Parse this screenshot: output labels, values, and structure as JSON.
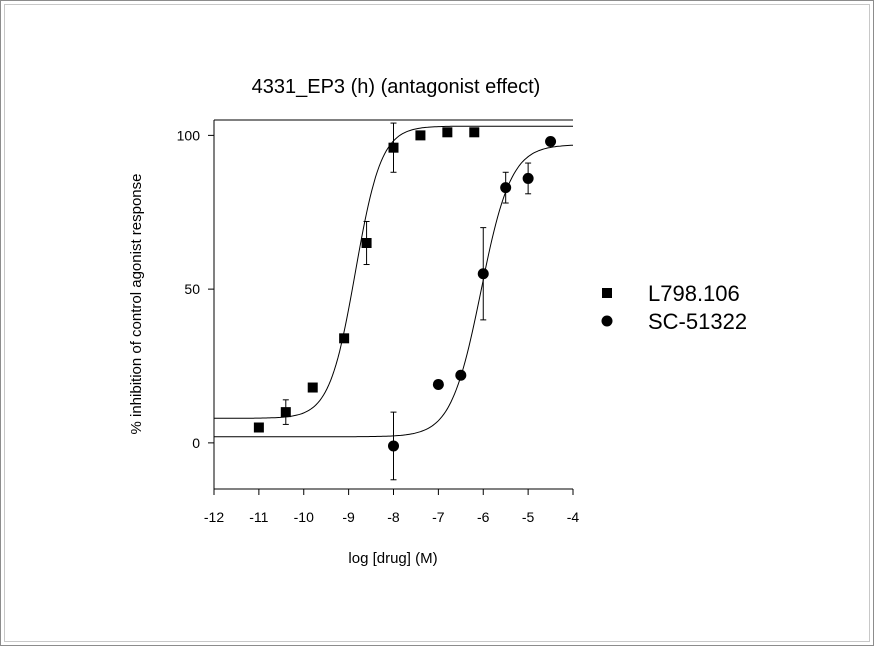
{
  "chart_data": {
    "type": "scatter",
    "title": "4331_EP3 (h) (antagonist effect)",
    "xlabel": "log [drug]  (M)",
    "ylabel": "% inhibition of control agonist response",
    "xlim": [
      -12,
      -4
    ],
    "ylim": [
      -15,
      105
    ],
    "x_ticks": [
      -12,
      -11,
      -10,
      -9,
      -8,
      -7,
      -6,
      -5,
      -4
    ],
    "y_ticks": [
      0,
      50,
      100
    ],
    "legend_position": "right",
    "series": [
      {
        "name": "L798.106",
        "marker": "square",
        "color": "#000000",
        "points": [
          {
            "x": -11.0,
            "y": 5,
            "err": 0
          },
          {
            "x": -10.4,
            "y": 10,
            "err": 4
          },
          {
            "x": -9.8,
            "y": 18,
            "err": 0
          },
          {
            "x": -9.1,
            "y": 34,
            "err": 0
          },
          {
            "x": -8.6,
            "y": 65,
            "err": 7
          },
          {
            "x": -8.0,
            "y": 96,
            "err": 8
          },
          {
            "x": -7.4,
            "y": 100,
            "err": 0
          },
          {
            "x": -6.8,
            "y": 101,
            "err": 0
          },
          {
            "x": -6.2,
            "y": 101,
            "err": 0
          }
        ],
        "fit": {
          "bottom": 8,
          "top": 103,
          "logEC50": -8.85,
          "hill": 1.5
        }
      },
      {
        "name": "SC-51322",
        "marker": "circle",
        "color": "#000000",
        "points": [
          {
            "x": -8.0,
            "y": -1,
            "err": 11
          },
          {
            "x": -7.0,
            "y": 19,
            "err": 0
          },
          {
            "x": -6.5,
            "y": 22,
            "err": 0
          },
          {
            "x": -6.0,
            "y": 55,
            "err": 15
          },
          {
            "x": -5.5,
            "y": 83,
            "err": 5
          },
          {
            "x": -5.0,
            "y": 86,
            "err": 5
          },
          {
            "x": -4.5,
            "y": 98,
            "err": 0
          }
        ],
        "fit": {
          "bottom": 2,
          "top": 97,
          "logEC50": -6.05,
          "hill": 1.3
        }
      }
    ]
  }
}
